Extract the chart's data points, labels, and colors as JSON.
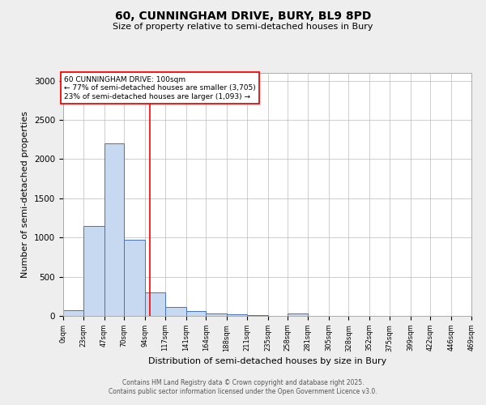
{
  "title": "60, CUNNINGHAM DRIVE, BURY, BL9 8PD",
  "subtitle": "Size of property relative to semi-detached houses in Bury",
  "xlabel": "Distribution of semi-detached houses by size in Bury",
  "ylabel": "Number of semi-detached properties",
  "footnote1": "Contains HM Land Registry data © Crown copyright and database right 2025.",
  "footnote2": "Contains public sector information licensed under the Open Government Licence v3.0.",
  "annotation_title": "60 CUNNINGHAM DRIVE: 100sqm",
  "annotation_line1": "← 77% of semi-detached houses are smaller (3,705)",
  "annotation_line2": "23% of semi-detached houses are larger (1,093) →",
  "property_size": 100,
  "bar_edges": [
    0,
    23,
    47,
    70,
    94,
    117,
    141,
    164,
    188,
    211,
    235,
    258,
    281,
    305,
    328,
    352,
    375,
    399,
    422,
    446,
    469
  ],
  "bar_heights": [
    70,
    1150,
    2200,
    975,
    300,
    110,
    60,
    35,
    20,
    8,
    5,
    30,
    0,
    0,
    0,
    0,
    0,
    0,
    0,
    0
  ],
  "bar_color": "#c6d9f1",
  "bar_edge_color": "#4472c4",
  "red_line_x": 100,
  "ylim": [
    0,
    3100
  ],
  "background_color": "#eeeeee",
  "plot_background": "#ffffff",
  "grid_color": "#bbbbbb"
}
